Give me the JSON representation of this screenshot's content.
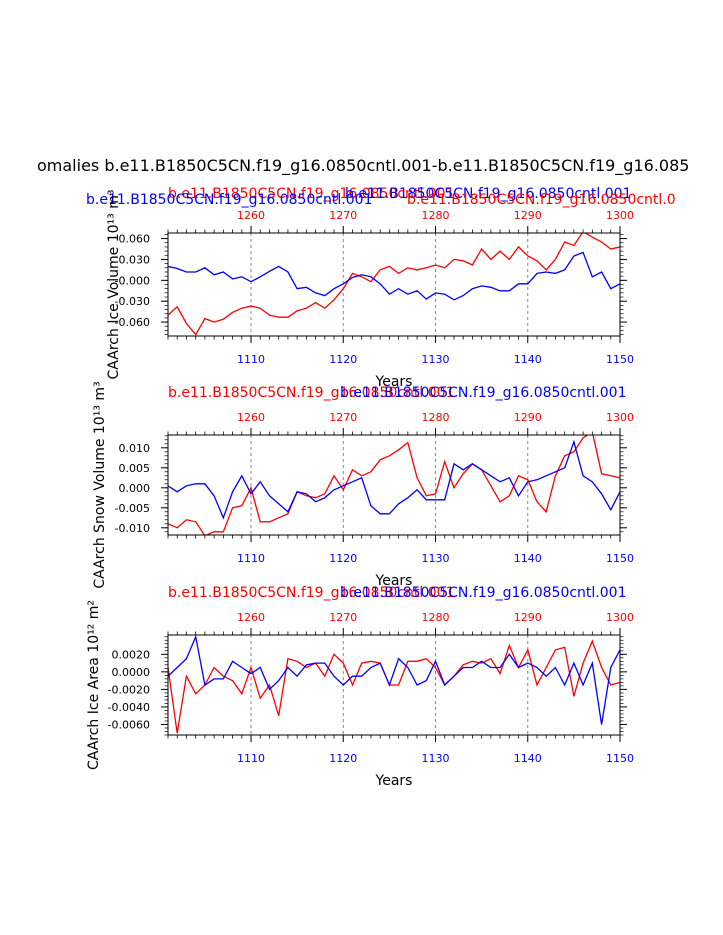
{
  "figure": {
    "main_title": "omalies b.e11.B1850C5CN.f19_g16.0850cntl.001-b.e11.B1850C5CN.f19_g16.085"
  },
  "colors": {
    "top_axis_series": "#ff0000",
    "bottom_axis_series": "#0000ff",
    "frame": "#000000",
    "reference_lines": "#888888"
  },
  "chart_data": [
    {
      "type": "line",
      "title_red": "b.e11.B1850C5CN.f19_g16.0850cntl.001",
      "title_red_2": "b.e11.B1850C5CN.f19_g16.0850cntl.0",
      "title_blue": "b.e11.B1850C5CN.f19_g16.0850cntl.001",
      "title_blue_2": "b.e11.B1850C5CN.f19_g16.0850cntl.001",
      "ylabel": "CAArch Ice Volume 10¹³ m³",
      "xlabel": "Years",
      "x_bottom": {
        "range": [
          1101,
          1150
        ],
        "ticks": [
          1110,
          1120,
          1130,
          1140,
          1150
        ],
        "tick_labels": [
          "1110",
          "1120",
          "1130",
          "1140",
          "1150"
        ]
      },
      "x_top": {
        "range": [
          1251,
          1300
        ],
        "ticks": [
          1260,
          1270,
          1280,
          1290,
          1300
        ],
        "tick_labels": [
          "1260",
          "1270",
          "1280",
          "1290",
          "1300"
        ]
      },
      "ylim": [
        -0.08,
        0.068
      ],
      "y_ticks": [
        0.06,
        0.03,
        0.0,
        -0.03,
        -0.06
      ],
      "y_tick_labels": [
        "0.060",
        "0.030",
        "-0.000",
        "-0.030",
        "-0.060"
      ],
      "reference_lines_x": [
        1110,
        1120,
        1130,
        1140
      ],
      "grid": false,
      "series": [
        {
          "color": "#ff0000",
          "axis": "top",
          "x_start": 1251,
          "x_step": 1,
          "values": [
            -0.05,
            -0.038,
            -0.062,
            -0.078,
            -0.055,
            -0.06,
            -0.056,
            -0.046,
            -0.04,
            -0.037,
            -0.04,
            -0.05,
            -0.053,
            -0.053,
            -0.044,
            -0.04,
            -0.032,
            -0.04,
            -0.028,
            -0.012,
            0.01,
            0.005,
            -0.002,
            0.015,
            0.02,
            0.01,
            0.018,
            0.015,
            0.018,
            0.022,
            0.018,
            0.03,
            0.028,
            0.022,
            0.045,
            0.03,
            0.042,
            0.03,
            0.048,
            0.035,
            0.028,
            0.015,
            0.03,
            0.055,
            0.05,
            0.07,
            0.062,
            0.055,
            0.045,
            0.048
          ]
        },
        {
          "color": "#0000ff",
          "axis": "bottom",
          "x_start": 1101,
          "x_step": 1,
          "values": [
            0.02,
            0.017,
            0.012,
            0.012,
            0.018,
            0.008,
            0.012,
            0.002,
            0.005,
            -0.002,
            0.005,
            0.013,
            0.02,
            0.012,
            -0.012,
            -0.01,
            -0.018,
            -0.022,
            -0.012,
            -0.005,
            0.004,
            0.008,
            0.005,
            -0.005,
            -0.02,
            -0.012,
            -0.02,
            -0.015,
            -0.027,
            -0.018,
            -0.02,
            -0.028,
            -0.022,
            -0.012,
            -0.008,
            -0.01,
            -0.015,
            -0.015,
            -0.005,
            -0.005,
            0.01,
            0.012,
            0.01,
            0.015,
            0.035,
            0.04,
            0.005,
            0.012,
            -0.012,
            -0.005
          ]
        }
      ]
    },
    {
      "type": "line",
      "title_red": "b.e11.B1850C5CN.f19_g16.0850cntl.001",
      "title_blue": "b.e11.B1850C5CN.f19_g16.0850cntl.001",
      "ylabel": "CAArch Snow Volume 10¹³ m³",
      "xlabel": "Years",
      "x_bottom": {
        "range": [
          1101,
          1150
        ],
        "ticks": [
          1110,
          1120,
          1130,
          1140,
          1150
        ],
        "tick_labels": [
          "1110",
          "1120",
          "1130",
          "1140",
          "1150"
        ]
      },
      "x_top": {
        "range": [
          1251,
          1300
        ],
        "ticks": [
          1260,
          1270,
          1280,
          1290,
          1300
        ],
        "tick_labels": [
          "1260",
          "1270",
          "1280",
          "1290",
          "1300"
        ]
      },
      "ylim": [
        -0.0118,
        0.0132
      ],
      "y_ticks": [
        0.01,
        0.005,
        0.0,
        -0.005,
        -0.01
      ],
      "y_tick_labels": [
        "0.010",
        "0.005",
        "0.000",
        "-0.005",
        "-0.010"
      ],
      "reference_lines_x": [
        1110,
        1120,
        1130,
        1140
      ],
      "grid": false,
      "series": [
        {
          "color": "#ff0000",
          "axis": "top",
          "x_start": 1251,
          "x_step": 1,
          "values": [
            -0.009,
            -0.01,
            -0.008,
            -0.0085,
            -0.012,
            -0.011,
            -0.011,
            -0.005,
            -0.0045,
            0.0,
            -0.0085,
            -0.0085,
            -0.0075,
            -0.0065,
            -0.001,
            -0.002,
            -0.0025,
            -0.0015,
            0.003,
            -0.0005,
            0.0045,
            0.003,
            0.004,
            0.007,
            0.008,
            0.0095,
            0.0113,
            0.0025,
            -0.002,
            -0.0015,
            0.0065,
            0.0,
            0.0035,
            0.006,
            0.0045,
            0.0005,
            -0.0035,
            -0.002,
            0.003,
            0.002,
            -0.0035,
            -0.006,
            0.003,
            0.008,
            0.009,
            0.0125,
            0.014,
            0.0035,
            0.003,
            0.0025
          ]
        },
        {
          "color": "#0000ff",
          "axis": "bottom",
          "x_start": 1101,
          "x_step": 1,
          "values": [
            0.0005,
            -0.001,
            0.0005,
            0.001,
            0.001,
            -0.002,
            -0.0075,
            -0.001,
            0.003,
            -0.0015,
            0.0015,
            -0.002,
            -0.004,
            -0.006,
            -0.001,
            -0.0015,
            -0.0035,
            -0.0025,
            -0.0005,
            0.0005,
            0.0015,
            0.0025,
            -0.0045,
            -0.0065,
            -0.0065,
            -0.004,
            -0.0025,
            -0.0005,
            -0.003,
            -0.003,
            -0.003,
            0.006,
            0.0045,
            0.006,
            0.0045,
            0.003,
            0.0015,
            0.0025,
            -0.002,
            0.0015,
            0.002,
            0.003,
            0.004,
            0.005,
            0.0115,
            0.003,
            0.0015,
            -0.0015,
            -0.0055,
            -0.001
          ]
        }
      ]
    },
    {
      "type": "line",
      "title_red": "b.e11.B1850C5CN.f19_g16.0850cntl.001",
      "title_blue": "b.e11.B1850C5CN.f19_g16.0850cntl.001",
      "ylabel": "CAArch Ice Area 10¹² m²",
      "xlabel": "Years",
      "x_bottom": {
        "range": [
          1101,
          1150
        ],
        "ticks": [
          1110,
          1120,
          1130,
          1140,
          1150
        ],
        "tick_labels": [
          "1110",
          "1120",
          "1130",
          "1140",
          "1150"
        ]
      },
      "x_top": {
        "range": [
          1251,
          1300
        ],
        "ticks": [
          1260,
          1270,
          1280,
          1290,
          1300
        ],
        "tick_labels": [
          "1260",
          "1270",
          "1280",
          "1290",
          "1300"
        ]
      },
      "ylim": [
        -0.0072,
        0.0042
      ],
      "y_ticks": [
        0.002,
        0.0,
        -0.002,
        -0.004,
        -0.006
      ],
      "y_tick_labels": [
        "0.0020",
        "0.0000",
        "-0.0020",
        "-0.0040",
        "-0.0060"
      ],
      "reference_lines_x": [
        1110,
        1120,
        1130,
        1140
      ],
      "grid": false,
      "series": [
        {
          "color": "#ff0000",
          "axis": "top",
          "x_start": 1251,
          "x_step": 1,
          "values": [
            0.0005,
            -0.007,
            -0.0005,
            -0.0025,
            -0.0015,
            0.0005,
            -0.0005,
            -0.001,
            -0.0025,
            0.0005,
            -0.003,
            -0.0015,
            -0.005,
            0.0015,
            0.0012,
            0.0005,
            0.001,
            -0.0005,
            0.002,
            0.001,
            -0.0015,
            0.001,
            0.0012,
            0.001,
            -0.0015,
            -0.0015,
            0.0012,
            0.0012,
            0.0015,
            0.0005,
            -0.0015,
            -0.0005,
            0.0008,
            0.0012,
            0.001,
            0.0015,
            -0.0002,
            0.003,
            0.0005,
            0.0025,
            -0.0015,
            0.0005,
            0.0025,
            0.0028,
            -0.0028,
            0.001,
            0.0035,
            0.0005,
            -0.0015,
            -0.0012,
            0.0018
          ]
        },
        {
          "color": "#0000ff",
          "axis": "bottom",
          "x_start": 1101,
          "x_step": 1,
          "values": [
            -0.0005,
            0.0005,
            0.0015,
            0.004,
            -0.0015,
            -0.0008,
            -0.0008,
            0.0012,
            0.0005,
            -0.0002,
            0.0005,
            -0.002,
            -0.001,
            0.0005,
            -0.0005,
            0.0008,
            0.001,
            0.001,
            -0.0005,
            -0.0015,
            -0.0005,
            -0.0005,
            0.0005,
            0.001,
            -0.0015,
            0.0015,
            0.0005,
            -0.0015,
            -0.001,
            0.0012,
            -0.0015,
            -0.0005,
            0.0005,
            0.0005,
            0.0012,
            0.0005,
            0.0005,
            0.002,
            0.0005,
            0.001,
            0.0005,
            -0.0005,
            0.0005,
            -0.0015,
            0.001,
            -0.0015,
            0.001,
            -0.006,
            0.0005,
            0.0025,
            -0.0015
          ]
        }
      ]
    }
  ]
}
